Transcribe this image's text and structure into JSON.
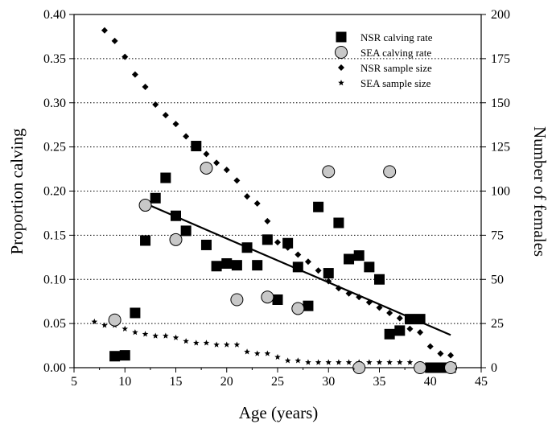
{
  "chart_data": {
    "type": "scatter",
    "xlabel": "Age (years)",
    "ylabel": "Proportion calving",
    "y2label": "Number of females",
    "xlim": [
      5,
      45
    ],
    "ylim": [
      0,
      0.4
    ],
    "y2lim": [
      0,
      200
    ],
    "grid": "horizontal dotted",
    "legend_position": "top-right",
    "x_ticks": [
      "5",
      "10",
      "15",
      "20",
      "25",
      "30",
      "35",
      "40",
      "45"
    ],
    "y_ticks": [
      "0.00",
      "0.05",
      "0.10",
      "0.15",
      "0.20",
      "0.25",
      "0.30",
      "0.35",
      "0.40"
    ],
    "y2_ticks": [
      "0",
      "25",
      "50",
      "75",
      "100",
      "125",
      "150",
      "175",
      "200"
    ],
    "series": [
      {
        "name": "NSR  calving rate",
        "marker": "square",
        "axis": "left",
        "color": "#000000",
        "points": [
          [
            9,
            0.013
          ],
          [
            10,
            0.014
          ],
          [
            11,
            0.062
          ],
          [
            12,
            0.144
          ],
          [
            13,
            0.192
          ],
          [
            14,
            0.215
          ],
          [
            15,
            0.172
          ],
          [
            16,
            0.155
          ],
          [
            17,
            0.251
          ],
          [
            18,
            0.139
          ],
          [
            19,
            0.115
          ],
          [
            20,
            0.118
          ],
          [
            21,
            0.116
          ],
          [
            22,
            0.136
          ],
          [
            23,
            0.116
          ],
          [
            24,
            0.145
          ],
          [
            25,
            0.077
          ],
          [
            26,
            0.141
          ],
          [
            27,
            0.114
          ],
          [
            28,
            0.07
          ],
          [
            29,
            0.182
          ],
          [
            30,
            0.107
          ],
          [
            31,
            0.164
          ],
          [
            32,
            0.123
          ],
          [
            33,
            0.127
          ],
          [
            34,
            0.114
          ],
          [
            35,
            0.1
          ],
          [
            36,
            0.038
          ],
          [
            37,
            0.042
          ],
          [
            38,
            0.055
          ],
          [
            39,
            0.055
          ],
          [
            40,
            0.0
          ],
          [
            41,
            0.0
          ],
          [
            42,
            0.0
          ]
        ]
      },
      {
        "name": "SEA  calving rate",
        "marker": "circle",
        "axis": "left",
        "color": "#c8c8c8",
        "points": [
          [
            9,
            0.054
          ],
          [
            12,
            0.184
          ],
          [
            15,
            0.145
          ],
          [
            18,
            0.226
          ],
          [
            21,
            0.077
          ],
          [
            24,
            0.08
          ],
          [
            27,
            0.067
          ],
          [
            30,
            0.222
          ],
          [
            33,
            0.0
          ],
          [
            36,
            0.222
          ],
          [
            39,
            0.0
          ],
          [
            42,
            0.0
          ]
        ]
      },
      {
        "name": "NSR  sample size",
        "marker": "diamond",
        "axis": "right",
        "color": "#000000",
        "points": [
          [
            8,
            191
          ],
          [
            9,
            185
          ],
          [
            10,
            176
          ],
          [
            11,
            166
          ],
          [
            12,
            159
          ],
          [
            13,
            149
          ],
          [
            14,
            143
          ],
          [
            15,
            138
          ],
          [
            16,
            131
          ],
          [
            17,
            126
          ],
          [
            18,
            121
          ],
          [
            19,
            116
          ],
          [
            20,
            112
          ],
          [
            21,
            106
          ],
          [
            22,
            97
          ],
          [
            23,
            93
          ],
          [
            24,
            83
          ],
          [
            25,
            71
          ],
          [
            26,
            68
          ],
          [
            27,
            64
          ],
          [
            28,
            60
          ],
          [
            29,
            55
          ],
          [
            30,
            49
          ],
          [
            31,
            45
          ],
          [
            32,
            42
          ],
          [
            33,
            40
          ],
          [
            34,
            37
          ],
          [
            35,
            34
          ],
          [
            36,
            31
          ],
          [
            37,
            28
          ],
          [
            38,
            22
          ],
          [
            39,
            20
          ],
          [
            40,
            12
          ],
          [
            41,
            8
          ],
          [
            42,
            7
          ]
        ]
      },
      {
        "name": "SEA  sample size",
        "marker": "star",
        "axis": "right",
        "color": "#000000",
        "points": [
          [
            7,
            26
          ],
          [
            8,
            24
          ],
          [
            9,
            24
          ],
          [
            10,
            22
          ],
          [
            11,
            20
          ],
          [
            12,
            19
          ],
          [
            13,
            18
          ],
          [
            14,
            18
          ],
          [
            15,
            17
          ],
          [
            16,
            15
          ],
          [
            17,
            14
          ],
          [
            18,
            14
          ],
          [
            19,
            13
          ],
          [
            20,
            13
          ],
          [
            21,
            13
          ],
          [
            22,
            9
          ],
          [
            23,
            8
          ],
          [
            24,
            8
          ],
          [
            25,
            6
          ],
          [
            26,
            4
          ],
          [
            27,
            4
          ],
          [
            28,
            3
          ],
          [
            29,
            3
          ],
          [
            30,
            3
          ],
          [
            31,
            3
          ],
          [
            32,
            3
          ],
          [
            33,
            3
          ],
          [
            34,
            3
          ],
          [
            35,
            3
          ],
          [
            36,
            3
          ],
          [
            37,
            3
          ],
          [
            38,
            3
          ],
          [
            39,
            2
          ],
          [
            40,
            1
          ],
          [
            41,
            1
          ],
          [
            42,
            0
          ]
        ]
      }
    ],
    "trend_line": {
      "axis": "left",
      "from": [
        12,
        0.186
      ],
      "to": [
        42,
        0.037
      ]
    }
  }
}
